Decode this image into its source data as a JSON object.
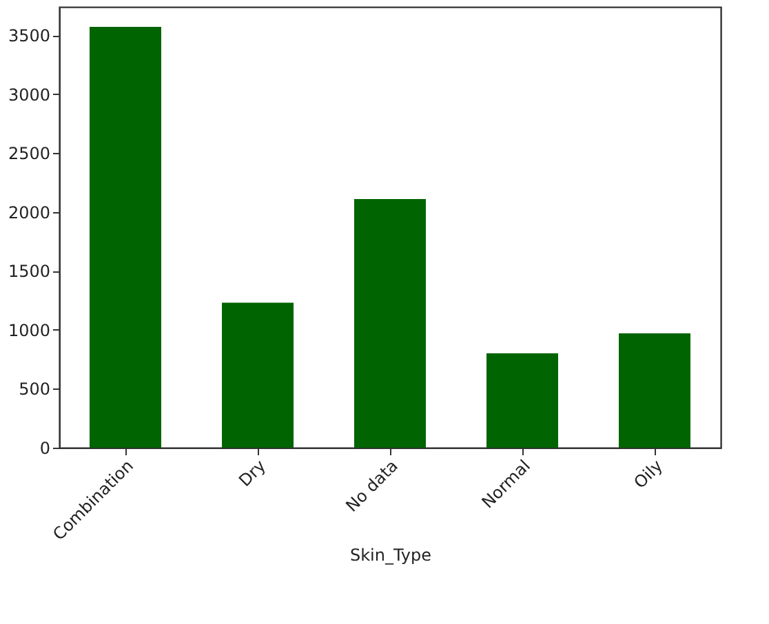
{
  "chart_data": {
    "type": "bar",
    "xlabel": "Skin_Type",
    "categories": [
      "Combination",
      "Dry",
      "No data",
      "Normal",
      "Oily"
    ],
    "values": [
      3570,
      1230,
      2110,
      800,
      970
    ],
    "color": "#006400",
    "ylim": [
      0,
      3740
    ],
    "yticks": [
      0,
      500,
      1000,
      1500,
      2000,
      2500,
      3000,
      3500
    ],
    "grid": false
  }
}
